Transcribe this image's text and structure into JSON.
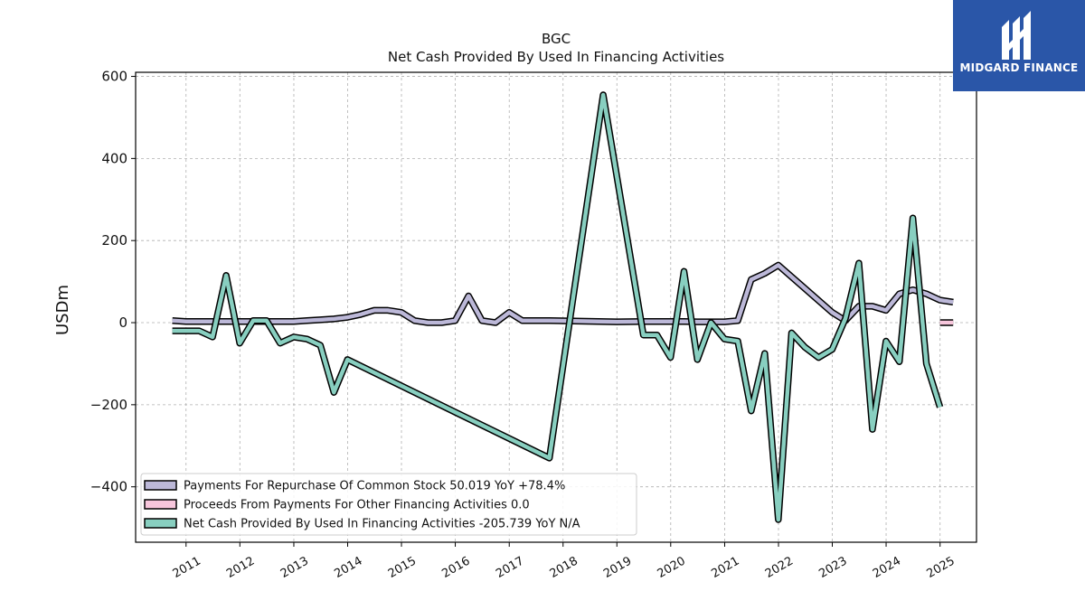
{
  "brand": {
    "name": "MIDGARD FINANCE",
    "accent": "#2a56a8"
  },
  "chart_data": {
    "type": "line",
    "title": "BGC",
    "subtitle": "Net Cash Provided By Used In Financing Activities",
    "xlabel": "",
    "ylabel": "USDm",
    "xlim": [
      "2010-01-24",
      "2025-09-05"
    ],
    "ylim": [
      -535,
      610
    ],
    "x_ticks": [
      "2011",
      "2012",
      "2013",
      "2014",
      "2015",
      "2016",
      "2017",
      "2018",
      "2019",
      "2020",
      "2021",
      "2022",
      "2023",
      "2024",
      "2025"
    ],
    "y_ticks": [
      -400,
      -200,
      0,
      200,
      400,
      600
    ],
    "y_tick_labels": [
      "−400",
      "−200",
      "0",
      "200",
      "400",
      "600"
    ],
    "grid": true,
    "legend_position": "lower-left",
    "series": [
      {
        "name": "Payments For Repurchase Of Common Stock",
        "legend_label": "Payments For Repurchase Of Common Stock  50.019 YoY +78.4%",
        "color": "#bcb8d8",
        "points": [
          [
            "2010-09-30",
            5
          ],
          [
            "2010-12-31",
            3
          ],
          [
            "2011-03-31",
            3
          ],
          [
            "2011-06-30",
            3
          ],
          [
            "2011-09-30",
            3
          ],
          [
            "2011-12-31",
            3
          ],
          [
            "2012-03-31",
            3
          ],
          [
            "2012-06-30",
            3
          ],
          [
            "2012-09-30",
            3
          ],
          [
            "2012-12-31",
            3
          ],
          [
            "2013-03-31",
            5
          ],
          [
            "2013-06-30",
            7
          ],
          [
            "2013-09-30",
            9
          ],
          [
            "2013-12-31",
            13
          ],
          [
            "2014-03-31",
            20
          ],
          [
            "2014-06-30",
            30
          ],
          [
            "2014-09-30",
            30
          ],
          [
            "2014-12-31",
            25
          ],
          [
            "2015-03-31",
            5
          ],
          [
            "2015-06-30",
            0
          ],
          [
            "2015-09-30",
            0
          ],
          [
            "2015-12-31",
            5
          ],
          [
            "2016-03-31",
            65
          ],
          [
            "2016-06-30",
            5
          ],
          [
            "2016-09-30",
            0
          ],
          [
            "2016-12-31",
            25
          ],
          [
            "2017-03-31",
            5
          ],
          [
            "2017-06-30",
            5
          ],
          [
            "2017-09-30",
            5
          ],
          [
            "2018-12-31",
            2
          ],
          [
            "2019-06-30",
            3
          ],
          [
            "2019-09-30",
            3
          ],
          [
            "2019-12-31",
            3
          ],
          [
            "2020-03-31",
            3
          ],
          [
            "2020-06-30",
            2
          ],
          [
            "2020-09-30",
            2
          ],
          [
            "2020-12-31",
            2
          ],
          [
            "2021-03-31",
            5
          ],
          [
            "2021-06-30",
            105
          ],
          [
            "2021-09-30",
            120
          ],
          [
            "2021-12-31",
            140
          ],
          [
            "2022-12-31",
            25
          ],
          [
            "2023-03-31",
            5
          ],
          [
            "2023-06-30",
            40
          ],
          [
            "2023-09-30",
            40
          ],
          [
            "2023-12-31",
            30
          ],
          [
            "2024-03-31",
            70
          ],
          [
            "2024-06-30",
            80
          ],
          [
            "2024-09-30",
            70
          ],
          [
            "2024-12-31",
            55
          ],
          [
            "2025-03-31",
            50.019
          ]
        ]
      },
      {
        "name": "Proceeds From Payments For Other Financing Activities",
        "legend_label": "Proceeds From Payments For Other Financing Activities  0.0",
        "color": "#f7c6dc",
        "points": [
          [
            "2024-12-31",
            0
          ],
          [
            "2025-03-31",
            0
          ]
        ]
      },
      {
        "name": "Net Cash Provided By Used In Financing Activities",
        "legend_label": "Net Cash Provided By Used In Financing Activities  -205.739 YoY N/A",
        "color": "#88cfc0",
        "points": [
          [
            "2010-09-30",
            -20
          ],
          [
            "2010-12-31",
            -20
          ],
          [
            "2011-03-31",
            -20
          ],
          [
            "2011-06-30",
            -35
          ],
          [
            "2011-09-30",
            115
          ],
          [
            "2011-12-31",
            -50
          ],
          [
            "2012-03-31",
            5
          ],
          [
            "2012-06-30",
            5
          ],
          [
            "2012-09-30",
            -50
          ],
          [
            "2012-12-31",
            -35
          ],
          [
            "2013-03-31",
            -40
          ],
          [
            "2013-06-30",
            -55
          ],
          [
            "2013-09-30",
            -170
          ],
          [
            "2013-12-31",
            -90
          ],
          [
            "2017-09-30",
            -330
          ],
          [
            "2018-09-30",
            555
          ],
          [
            "2019-06-30",
            -30
          ],
          [
            "2019-09-30",
            -30
          ],
          [
            "2019-12-31",
            -85
          ],
          [
            "2020-03-31",
            125
          ],
          [
            "2020-06-30",
            -90
          ],
          [
            "2020-09-30",
            0
          ],
          [
            "2020-12-31",
            -40
          ],
          [
            "2021-03-31",
            -45
          ],
          [
            "2021-06-30",
            -215
          ],
          [
            "2021-09-30",
            -75
          ],
          [
            "2021-12-31",
            -480
          ],
          [
            "2022-03-31",
            -25
          ],
          [
            "2022-06-30",
            -60
          ],
          [
            "2022-09-30",
            -85
          ],
          [
            "2022-12-31",
            -65
          ],
          [
            "2023-03-31",
            10
          ],
          [
            "2023-06-30",
            145
          ],
          [
            "2023-09-30",
            -260
          ],
          [
            "2023-12-31",
            -45
          ],
          [
            "2024-03-31",
            -95
          ],
          [
            "2024-06-30",
            255
          ],
          [
            "2024-09-30",
            -100
          ],
          [
            "2024-12-31",
            -205.739
          ]
        ]
      }
    ]
  }
}
